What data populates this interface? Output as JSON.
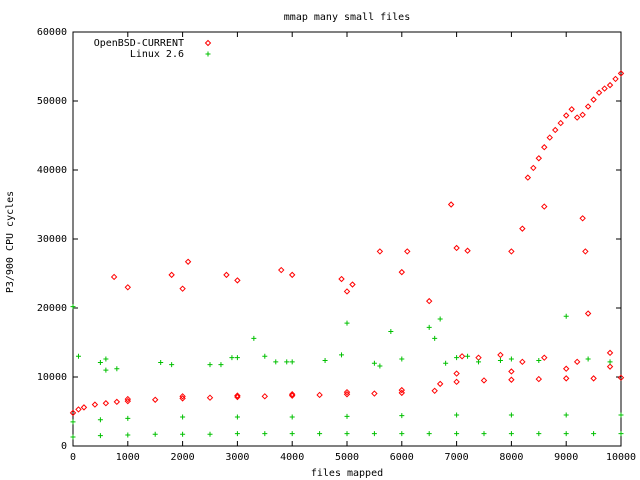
{
  "chart_data": {
    "type": "scatter",
    "title": "mmap many small files",
    "xlabel": "files mapped",
    "ylabel": "P3/900 CPU cycles",
    "xlim": [
      0,
      10000
    ],
    "ylim": [
      0,
      60000
    ],
    "x_ticks": [
      0,
      1000,
      2000,
      3000,
      4000,
      5000,
      6000,
      7000,
      8000,
      9000,
      10000
    ],
    "y_ticks": [
      0,
      10000,
      20000,
      30000,
      40000,
      50000,
      60000
    ],
    "legend_position": "top-left",
    "grid": false,
    "series": [
      {
        "name": "OpenBSD-CURRENT",
        "marker": "diamond",
        "color": "#ff0000",
        "points": [
          [
            0,
            4800
          ],
          [
            100,
            5300
          ],
          [
            200,
            5600
          ],
          [
            400,
            6000
          ],
          [
            600,
            6200
          ],
          [
            800,
            6400
          ],
          [
            1000,
            6500
          ],
          [
            1500,
            6700
          ],
          [
            2000,
            6900
          ],
          [
            2500,
            7000
          ],
          [
            3000,
            7100
          ],
          [
            3500,
            7200
          ],
          [
            4000,
            7300
          ],
          [
            4500,
            7400
          ],
          [
            5000,
            7500
          ],
          [
            5500,
            7600
          ],
          [
            6000,
            7700
          ],
          [
            6600,
            8000
          ],
          [
            6700,
            9000
          ],
          [
            7000,
            9300
          ],
          [
            7500,
            9500
          ],
          [
            8000,
            9600
          ],
          [
            8500,
            9700
          ],
          [
            9000,
            9800
          ],
          [
            9500,
            9800
          ],
          [
            10000,
            9900
          ],
          [
            1000,
            6800
          ],
          [
            2000,
            7200
          ],
          [
            3000,
            7300
          ],
          [
            4000,
            7500
          ],
          [
            5000,
            7800
          ],
          [
            6000,
            8100
          ],
          [
            7000,
            10500
          ],
          [
            8000,
            10800
          ],
          [
            9000,
            11200
          ],
          [
            9800,
            11500
          ],
          [
            750,
            24500
          ],
          [
            1000,
            23000
          ],
          [
            1800,
            24800
          ],
          [
            2000,
            22800
          ],
          [
            2100,
            26700
          ],
          [
            2800,
            24800
          ],
          [
            3000,
            24000
          ],
          [
            3800,
            25500
          ],
          [
            4000,
            24800
          ],
          [
            4900,
            24200
          ],
          [
            5000,
            22400
          ],
          [
            5100,
            23400
          ],
          [
            5600,
            28200
          ],
          [
            6000,
            25200
          ],
          [
            6100,
            28200
          ],
          [
            6500,
            21000
          ],
          [
            6900,
            35000
          ],
          [
            7000,
            28700
          ],
          [
            7200,
            28300
          ],
          [
            8000,
            28200
          ],
          [
            8200,
            31500
          ],
          [
            8600,
            34700
          ],
          [
            9300,
            33000
          ],
          [
            9350,
            28200
          ],
          [
            9400,
            19200
          ],
          [
            8300,
            38900
          ],
          [
            8400,
            40300
          ],
          [
            8500,
            41700
          ],
          [
            8600,
            43300
          ],
          [
            8700,
            44700
          ],
          [
            8800,
            45800
          ],
          [
            8900,
            46800
          ],
          [
            9000,
            47900
          ],
          [
            9100,
            48800
          ],
          [
            9200,
            47600
          ],
          [
            9300,
            48000
          ],
          [
            9400,
            49200
          ],
          [
            9500,
            50200
          ],
          [
            9600,
            51200
          ],
          [
            9700,
            51800
          ],
          [
            9800,
            52300
          ],
          [
            9900,
            53200
          ],
          [
            10000,
            54000
          ],
          [
            7100,
            13000
          ],
          [
            7400,
            12800
          ],
          [
            7800,
            13200
          ],
          [
            8200,
            12200
          ],
          [
            8600,
            12800
          ],
          [
            9200,
            12200
          ],
          [
            9800,
            13500
          ]
        ]
      },
      {
        "name": "Linux 2.6",
        "marker": "plus",
        "color": "#00c000",
        "points": [
          [
            0,
            1300
          ],
          [
            500,
            1500
          ],
          [
            1000,
            1600
          ],
          [
            1500,
            1700
          ],
          [
            2000,
            1700
          ],
          [
            2500,
            1700
          ],
          [
            3000,
            1800
          ],
          [
            3500,
            1800
          ],
          [
            4000,
            1800
          ],
          [
            4500,
            1800
          ],
          [
            5000,
            1800
          ],
          [
            5500,
            1800
          ],
          [
            6000,
            1800
          ],
          [
            6500,
            1800
          ],
          [
            7000,
            1800
          ],
          [
            7500,
            1800
          ],
          [
            8000,
            1800
          ],
          [
            8500,
            1800
          ],
          [
            9000,
            1800
          ],
          [
            9500,
            1800
          ],
          [
            10000,
            1800
          ],
          [
            0,
            3500
          ],
          [
            500,
            3800
          ],
          [
            1000,
            4000
          ],
          [
            2000,
            4200
          ],
          [
            3000,
            4200
          ],
          [
            4000,
            4200
          ],
          [
            5000,
            4300
          ],
          [
            6000,
            4400
          ],
          [
            7000,
            4500
          ],
          [
            8000,
            4500
          ],
          [
            9000,
            4500
          ],
          [
            10000,
            4500
          ],
          [
            0,
            20200
          ],
          [
            100,
            13000
          ],
          [
            500,
            12100
          ],
          [
            600,
            12600
          ],
          [
            600,
            11000
          ],
          [
            800,
            11200
          ],
          [
            1600,
            12100
          ],
          [
            1800,
            11800
          ],
          [
            2500,
            11800
          ],
          [
            2700,
            11800
          ],
          [
            2900,
            12800
          ],
          [
            3000,
            12800
          ],
          [
            3300,
            15600
          ],
          [
            3500,
            13000
          ],
          [
            3700,
            12200
          ],
          [
            3900,
            12200
          ],
          [
            4000,
            12200
          ],
          [
            4600,
            12400
          ],
          [
            4900,
            13200
          ],
          [
            5000,
            17800
          ],
          [
            5500,
            12000
          ],
          [
            5600,
            11600
          ],
          [
            5800,
            16600
          ],
          [
            6000,
            12600
          ],
          [
            6500,
            17200
          ],
          [
            6600,
            15600
          ],
          [
            6700,
            18400
          ],
          [
            6800,
            12000
          ],
          [
            7000,
            12800
          ],
          [
            7200,
            13000
          ],
          [
            7400,
            12200
          ],
          [
            7800,
            12400
          ],
          [
            8000,
            12600
          ],
          [
            8500,
            12400
          ],
          [
            9000,
            18800
          ],
          [
            9400,
            12600
          ],
          [
            9800,
            12200
          ]
        ]
      }
    ]
  }
}
